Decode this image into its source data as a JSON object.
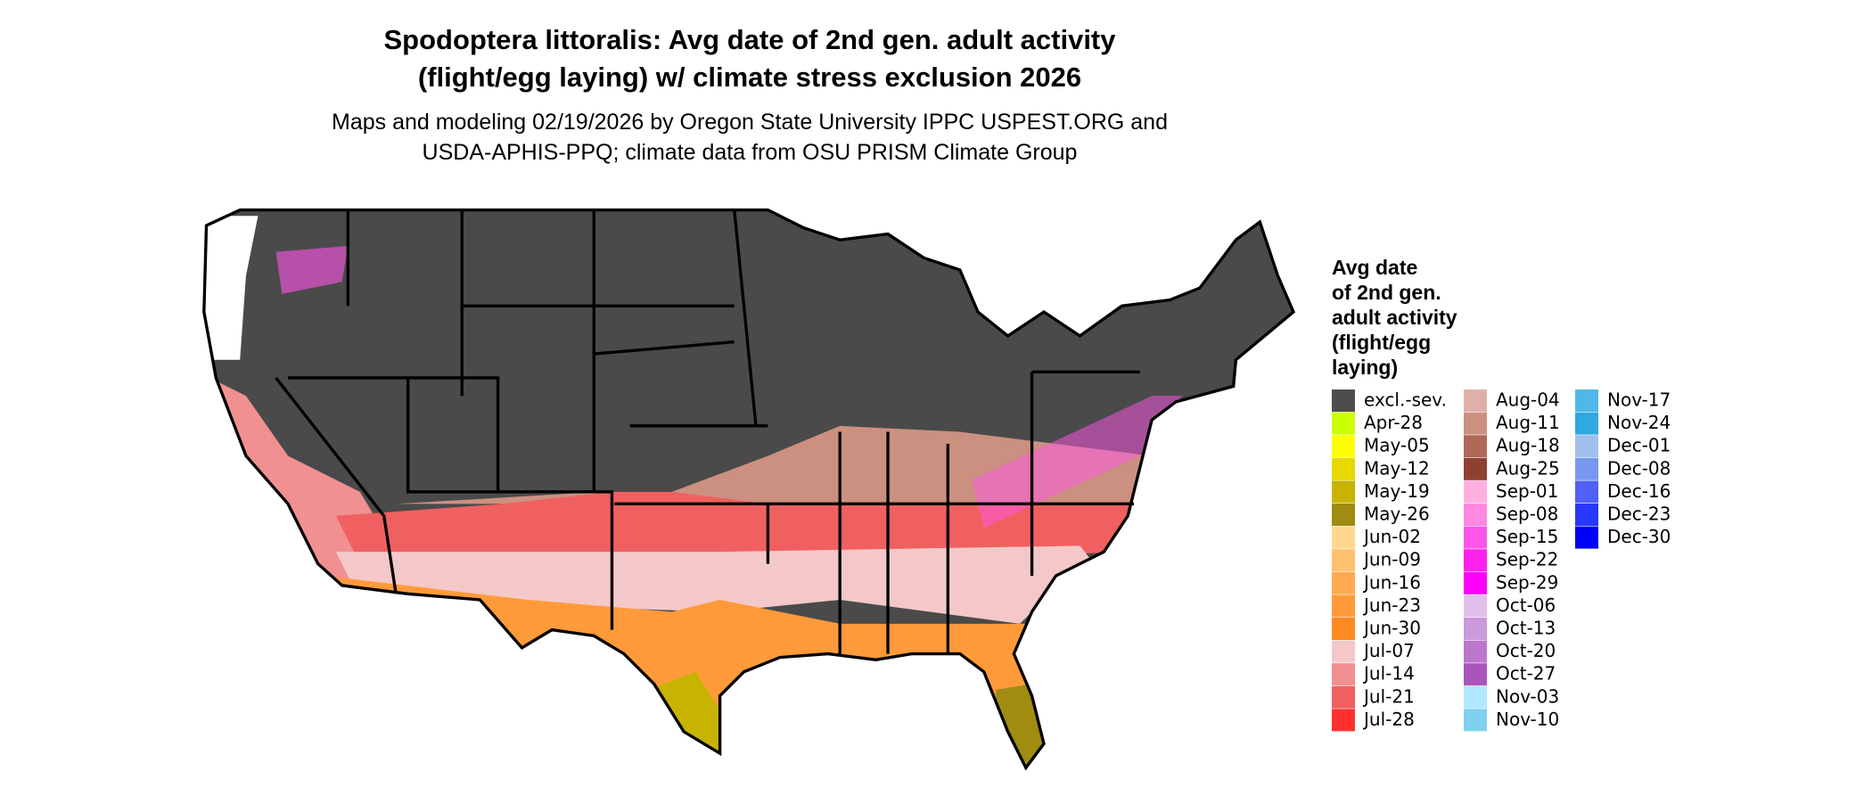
{
  "title": "Spodoptera littoralis: Avg date of 2nd gen. adult activity\n(flight/egg laying) w/ climate stress exclusion 2026",
  "subtitle": "Maps and modeling 02/19/2026 by Oregon State University IPPC USPEST.ORG and\nUSDA-APHIS-PPQ; climate data from OSU PRISM Climate Group",
  "legend": {
    "title": "Avg date\nof 2nd gen.\nadult activity\n(flight/egg\nlaying)",
    "items": [
      {
        "label": "excl.-sev.",
        "color": "#4d4d4d"
      },
      {
        "label": "Apr-28",
        "color": "#ccff00"
      },
      {
        "label": "May-05",
        "color": "#ffff00"
      },
      {
        "label": "May-12",
        "color": "#e6d800"
      },
      {
        "label": "May-19",
        "color": "#c8b400"
      },
      {
        "label": "May-26",
        "color": "#a08c10"
      },
      {
        "label": "Jun-02",
        "color": "#ffd890"
      },
      {
        "label": "Jun-09",
        "color": "#ffc070"
      },
      {
        "label": "Jun-16",
        "color": "#ffaa50"
      },
      {
        "label": "Jun-23",
        "color": "#ff9a3a"
      },
      {
        "label": "Jun-30",
        "color": "#ff8a20"
      },
      {
        "label": "Jul-07",
        "color": "#f4c8c8"
      },
      {
        "label": "Jul-14",
        "color": "#f09090"
      },
      {
        "label": "Jul-21",
        "color": "#f06060"
      },
      {
        "label": "Jul-28",
        "color": "#ff3030"
      },
      {
        "label": "Aug-04",
        "color": "#e0b0a8"
      },
      {
        "label": "Aug-11",
        "color": "#cc9080"
      },
      {
        "label": "Aug-18",
        "color": "#b06858"
      },
      {
        "label": "Aug-25",
        "color": "#904030"
      },
      {
        "label": "Sep-01",
        "color": "#ffb0e0"
      },
      {
        "label": "Sep-08",
        "color": "#ff88e0"
      },
      {
        "label": "Sep-15",
        "color": "#ff55e8"
      },
      {
        "label": "Sep-22",
        "color": "#ff22ee"
      },
      {
        "label": "Sep-29",
        "color": "#ff00ff"
      },
      {
        "label": "Oct-06",
        "color": "#e0c0e8"
      },
      {
        "label": "Oct-13",
        "color": "#cc99dd"
      },
      {
        "label": "Oct-20",
        "color": "#bb77cc"
      },
      {
        "label": "Oct-27",
        "color": "#aa55bb"
      },
      {
        "label": "Nov-03",
        "color": "#b0e8ff"
      },
      {
        "label": "Nov-10",
        "color": "#80d0f0"
      },
      {
        "label": "Nov-17",
        "color": "#50b8e8"
      },
      {
        "label": "Nov-24",
        "color": "#30a8e0"
      },
      {
        "label": "Dec-01",
        "color": "#a0c0f0"
      },
      {
        "label": "Dec-08",
        "color": "#7898f0"
      },
      {
        "label": "Dec-16",
        "color": "#5060f8"
      },
      {
        "label": "Dec-23",
        "color": "#2838ff"
      },
      {
        "label": "Dec-30",
        "color": "#0000ff"
      }
    ]
  }
}
